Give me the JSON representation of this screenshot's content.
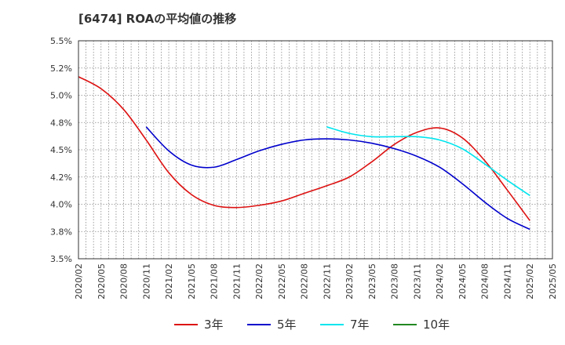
{
  "chart_data": {
    "type": "line",
    "title": "[6474]  ROAの平均値の推移",
    "xlabel": "",
    "ylabel": "",
    "ylim": [
      3.5,
      5.5
    ],
    "y_ticks": [
      "3.5%",
      "3.8%",
      "4.0%",
      "4.2%",
      "4.5%",
      "4.8%",
      "5.0%",
      "5.2%",
      "5.5%"
    ],
    "y_tick_values": [
      3.5,
      3.75,
      4.0,
      4.25,
      4.5,
      4.75,
      5.0,
      5.25,
      5.5
    ],
    "x_categories": [
      "2020/02",
      "2020/05",
      "2020/08",
      "2020/11",
      "2021/02",
      "2021/05",
      "2021/08",
      "2021/11",
      "2022/02",
      "2022/05",
      "2022/08",
      "2022/11",
      "2023/02",
      "2023/05",
      "2023/08",
      "2023/11",
      "2024/02",
      "2024/05",
      "2024/08",
      "2024/11",
      "2025/02",
      "2025/05"
    ],
    "grid": true,
    "legend_position": "bottom",
    "series": [
      {
        "name": "3年",
        "color": "#dd1111",
        "x": [
          "2020/02",
          "2020/05",
          "2020/08",
          "2020/11",
          "2021/02",
          "2021/05",
          "2021/08",
          "2021/11",
          "2022/02",
          "2022/05",
          "2022/08",
          "2022/11",
          "2023/02",
          "2023/05",
          "2023/08",
          "2023/11",
          "2024/02",
          "2024/05",
          "2024/08",
          "2024/11",
          "2025/02"
        ],
        "values": [
          5.17,
          5.06,
          4.87,
          4.59,
          4.29,
          4.09,
          3.99,
          3.97,
          3.99,
          4.03,
          4.1,
          4.17,
          4.25,
          4.39,
          4.55,
          4.66,
          4.7,
          4.61,
          4.4,
          4.13,
          3.85
        ]
      },
      {
        "name": "5年",
        "color": "#0000cc",
        "x": [
          "2020/11",
          "2021/02",
          "2021/05",
          "2021/08",
          "2021/11",
          "2022/02",
          "2022/05",
          "2022/08",
          "2022/11",
          "2023/02",
          "2023/05",
          "2023/08",
          "2023/11",
          "2024/02",
          "2024/05",
          "2024/08",
          "2024/11",
          "2025/02"
        ],
        "values": [
          4.71,
          4.49,
          4.36,
          4.34,
          4.41,
          4.49,
          4.55,
          4.59,
          4.6,
          4.59,
          4.56,
          4.51,
          4.44,
          4.34,
          4.19,
          4.02,
          3.87,
          3.77
        ]
      },
      {
        "name": "7年",
        "color": "#00e5ee",
        "x": [
          "2022/11",
          "2023/02",
          "2023/05",
          "2023/08",
          "2023/11",
          "2024/02",
          "2024/05",
          "2024/08",
          "2024/11",
          "2025/02"
        ],
        "values": [
          4.71,
          4.65,
          4.62,
          4.62,
          4.62,
          4.59,
          4.51,
          4.37,
          4.22,
          4.08
        ]
      },
      {
        "name": "10年",
        "color": "#228822",
        "x": [],
        "values": []
      }
    ]
  }
}
